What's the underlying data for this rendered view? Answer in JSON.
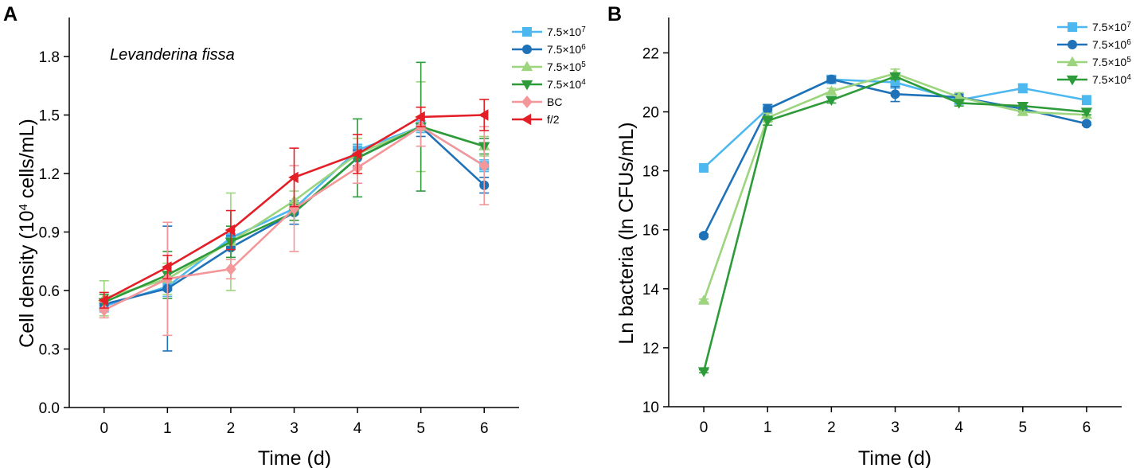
{
  "chart_data": [
    {
      "panel_label": "A",
      "type": "line",
      "title": "",
      "annotation": "Levanderina fissa",
      "xlabel": "Time (d)",
      "ylabel": "Cell density (10^4 cells/mL)",
      "ylabel_parts": {
        "pre": "Cell density (10",
        "sup": "4",
        "post": " cells/mL)"
      },
      "x": [
        0,
        1,
        2,
        3,
        4,
        5,
        6
      ],
      "xlim": [
        -0.55,
        6.55
      ],
      "ylim": [
        0,
        2.0
      ],
      "xticks": [
        0,
        1,
        2,
        3,
        4,
        5,
        6
      ],
      "yticks": [
        0.0,
        0.3,
        0.6,
        0.9,
        1.2,
        1.5,
        1.8
      ],
      "ytick_labels": [
        "0.0",
        "0.3",
        "0.6",
        "0.9",
        "1.2",
        "1.5",
        "1.8"
      ],
      "legend_position": "top-right",
      "series": [
        {
          "name": "7.5×10^7",
          "base": "7.5×10",
          "exp": "7",
          "color": "#4DB8F0",
          "marker": "square",
          "values": [
            0.52,
            0.62,
            0.87,
            1.02,
            1.32,
            1.44,
            1.24
          ],
          "errors": [
            0.03,
            0.05,
            0.04,
            0.03,
            0.03,
            0.03,
            0.03
          ]
        },
        {
          "name": "7.5×10^6",
          "base": "7.5×10",
          "exp": "6",
          "color": "#1F72B8",
          "marker": "circle",
          "values": [
            0.53,
            0.61,
            0.82,
            1.0,
            1.28,
            1.44,
            1.14
          ],
          "errors": [
            0.02,
            0.32,
            0.06,
            0.06,
            0.04,
            0.05,
            0.04
          ]
        },
        {
          "name": "7.5×10^5",
          "base": "7.5×10",
          "exp": "5",
          "color": "#9DD47E",
          "marker": "triangle-up",
          "values": [
            0.56,
            0.66,
            0.85,
            1.06,
            1.3,
            1.44,
            1.34
          ],
          "errors": [
            0.09,
            0.08,
            0.25,
            0.05,
            0.08,
            0.23,
            0.05
          ]
        },
        {
          "name": "7.5×10^4",
          "base": "7.5×10",
          "exp": "4",
          "color": "#2E9B3A",
          "marker": "triangle-down",
          "values": [
            0.54,
            0.68,
            0.85,
            1.0,
            1.28,
            1.44,
            1.34
          ],
          "errors": [
            0.04,
            0.12,
            0.08,
            0.04,
            0.2,
            0.33,
            0.04
          ]
        },
        {
          "name": "BC",
          "base": "BC",
          "exp": "",
          "color": "#F4979A",
          "marker": "diamond",
          "values": [
            0.5,
            0.66,
            0.71,
            1.02,
            1.23,
            1.44,
            1.24
          ],
          "errors": [
            0.04,
            0.29,
            0.05,
            0.22,
            0.08,
            0.1,
            0.2
          ]
        },
        {
          "name": "f/2",
          "base": "f/2",
          "exp": "",
          "color": "#E41E26",
          "marker": "triangle-left",
          "values": [
            0.55,
            0.72,
            0.91,
            1.18,
            1.3,
            1.49,
            1.5
          ],
          "errors": [
            0.04,
            0.06,
            0.1,
            0.15,
            0.1,
            0.05,
            0.08
          ]
        }
      ]
    },
    {
      "panel_label": "B",
      "type": "line",
      "title": "",
      "annotation": "",
      "xlabel": "Time (d)",
      "ylabel": "Ln bacteria (ln CFUs/mL)",
      "x": [
        0,
        1,
        2,
        3,
        4,
        5,
        6
      ],
      "xlim": [
        -0.55,
        6.55
      ],
      "ylim": [
        10,
        23.2
      ],
      "xticks": [
        0,
        1,
        2,
        3,
        4,
        5,
        6
      ],
      "yticks": [
        10,
        12,
        14,
        16,
        18,
        20,
        22
      ],
      "ytick_labels": [
        "10",
        "12",
        "14",
        "16",
        "18",
        "20",
        "22"
      ],
      "legend_position": "top-right",
      "series": [
        {
          "name": "7.5×10^7",
          "base": "7.5×10",
          "exp": "7",
          "color": "#4DB8F0",
          "marker": "square",
          "values": [
            18.1,
            20.1,
            21.1,
            21.0,
            20.4,
            20.8,
            20.4
          ],
          "errors": [
            0.05,
            0.15,
            0.1,
            0.2,
            0.1,
            0.15,
            0.15
          ]
        },
        {
          "name": "7.5×10^6",
          "base": "7.5×10",
          "exp": "6",
          "color": "#1F72B8",
          "marker": "circle",
          "values": [
            15.8,
            20.1,
            21.1,
            20.6,
            20.5,
            20.1,
            19.6
          ],
          "errors": [
            0.05,
            0.15,
            0.1,
            0.25,
            0.1,
            0.1,
            0.05
          ]
        },
        {
          "name": "7.5×10^5",
          "base": "7.5×10",
          "exp": "5",
          "color": "#9DD47E",
          "marker": "triangle-up",
          "values": [
            13.6,
            19.8,
            20.7,
            21.3,
            20.5,
            20.0,
            19.9
          ],
          "errors": [
            0.05,
            0.15,
            0.1,
            0.15,
            0.15,
            0.1,
            0.1
          ]
        },
        {
          "name": "7.5×10^4",
          "base": "7.5×10",
          "exp": "4",
          "color": "#2E9B3A",
          "marker": "triangle-down",
          "values": [
            11.2,
            19.7,
            20.4,
            21.2,
            20.3,
            20.2,
            20.0
          ],
          "errors": [
            0.05,
            0.15,
            0.1,
            0.1,
            0.1,
            0.1,
            0.1
          ]
        }
      ]
    }
  ]
}
